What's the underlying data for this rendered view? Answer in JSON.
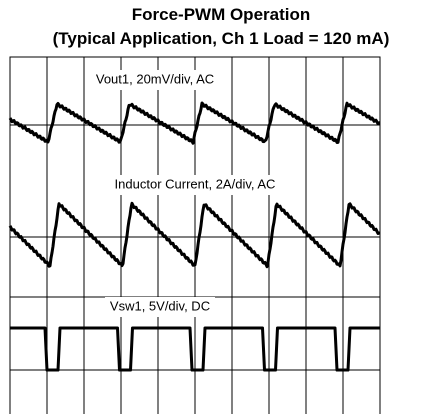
{
  "title": "Force-PWM Operation",
  "subtitle": "(Typical Application, Ch 1 Load = 120 mA)",
  "traces": [
    {
      "label": "Vout1, 20mV/div, AC"
    },
    {
      "label": "Inductor Current, 2A/div, AC"
    },
    {
      "label": "Vsw1, 5V/div, DC"
    }
  ]
}
